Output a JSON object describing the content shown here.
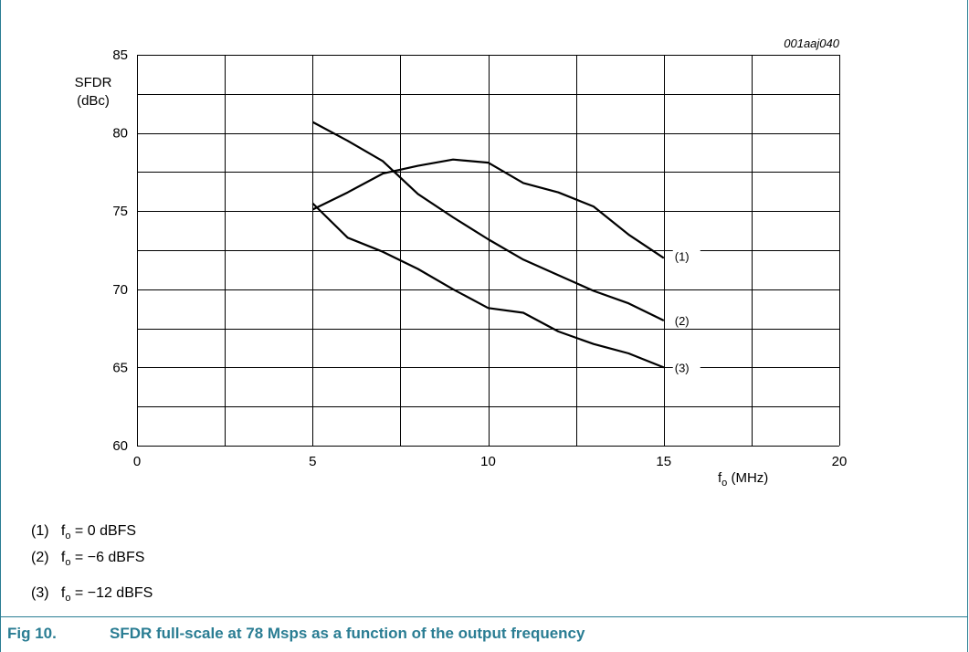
{
  "chart_data": {
    "type": "line",
    "figure_id": "001aaj040",
    "ylabel_line1": "SFDR",
    "ylabel_line2": "(dBc)",
    "xlabel_main": "f",
    "xlabel_sub": "o",
    "xlabel_unit": " (MHz)",
    "xlim": [
      0,
      20
    ],
    "ylim": [
      60,
      85
    ],
    "xticks": [
      0,
      5,
      10,
      15,
      20
    ],
    "yticks": [
      60,
      65,
      70,
      75,
      80,
      85
    ],
    "grid": true,
    "series": [
      {
        "name": "(1)",
        "x": [
          5,
          6,
          7,
          8,
          9,
          10,
          11,
          12,
          13,
          14,
          15
        ],
        "y": [
          75.1,
          76.2,
          77.4,
          77.9,
          78.3,
          78.1,
          76.8,
          76.2,
          75.3,
          73.5,
          72.0
        ]
      },
      {
        "name": "(2)",
        "x": [
          5,
          6,
          7,
          8,
          9,
          10,
          11,
          12,
          13,
          14,
          15
        ],
        "y": [
          80.7,
          79.5,
          78.2,
          76.1,
          74.6,
          73.2,
          71.9,
          70.9,
          69.9,
          69.1,
          68.0
        ]
      },
      {
        "name": "(3)",
        "x": [
          5,
          6,
          7,
          8,
          9,
          10,
          11,
          12,
          13,
          14,
          15
        ],
        "y": [
          75.5,
          73.3,
          72.4,
          71.3,
          70.0,
          68.8,
          68.5,
          67.3,
          66.5,
          65.9,
          65.0
        ]
      }
    ]
  },
  "legend": [
    {
      "num": "(1)",
      "sym": "f",
      "sub": "o",
      "text": " = 0 dBFS"
    },
    {
      "num": "(2)",
      "sym": "f",
      "sub": "o",
      "text": " = −6 dBFS"
    },
    {
      "num": "(3)",
      "sym": "f",
      "sub": "o",
      "text": " = −12 dBFS"
    }
  ],
  "caption": {
    "fig": "Fig 10.",
    "text": "SFDR full-scale at 78 Msps as a function of the output frequency"
  },
  "colors": {
    "frame": "#2a7d93",
    "caption": "#2a7d93",
    "grid": "#000000",
    "line": "#000000"
  }
}
